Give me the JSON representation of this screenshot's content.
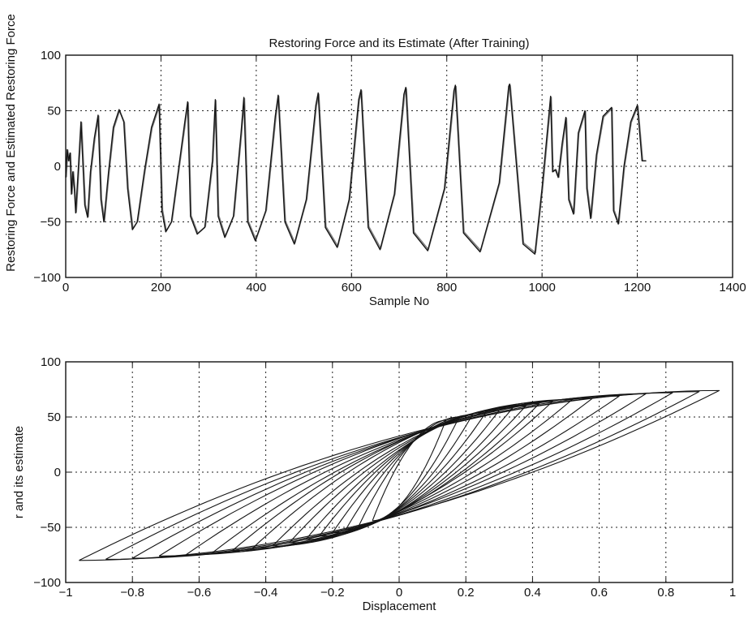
{
  "chart_data": [
    {
      "type": "line",
      "title": "Restoring Force and its Estimate  (After Training)",
      "xlabel": "Sample No",
      "ylabel": "Restoring Force and Estimated Restoring Force",
      "xlim": [
        0,
        1400
      ],
      "ylim": [
        -100,
        100
      ],
      "xticks": [
        0,
        200,
        400,
        600,
        800,
        1000,
        1200,
        1400
      ],
      "yticks": [
        -100,
        -50,
        0,
        50,
        100
      ],
      "grid": true,
      "cycles": [
        {
          "start": 12,
          "length": 28,
          "peak": 40,
          "trough": -46
        },
        {
          "start": 40,
          "length": 37,
          "peak": 46,
          "trough": -50
        },
        {
          "start": 77,
          "length": 63,
          "peak": 51,
          "trough": -57
        },
        {
          "start": 140,
          "length": 62,
          "peak": 56,
          "trough": -59
        },
        {
          "start": 202,
          "length": 58,
          "peak": 58,
          "trough": -61
        },
        {
          "start": 260,
          "length": 54,
          "peak": 60,
          "trough": -64
        },
        {
          "start": 314,
          "length": 60,
          "peak": 62,
          "trough": -67
        },
        {
          "start": 374,
          "length": 72,
          "peak": 64,
          "trough": -70
        },
        {
          "start": 446,
          "length": 84,
          "peak": 66,
          "trough": -73
        },
        {
          "start": 530,
          "length": 90,
          "peak": 69,
          "trough": -75
        },
        {
          "start": 620,
          "length": 94,
          "peak": 71,
          "trough": -76
        },
        {
          "start": 714,
          "length": 104,
          "peak": 73,
          "trough": -77
        },
        {
          "start": 818,
          "length": 114,
          "peak": 74,
          "trough": -79
        },
        {
          "start": 932,
          "length": 86,
          "peak": 63,
          "trough": -5
        },
        {
          "start": 1018,
          "length": 32,
          "peak": 44,
          "trough": -43
        },
        {
          "start": 1050,
          "length": 44,
          "peak": 50,
          "trough": -47
        },
        {
          "start": 1094,
          "length": 56,
          "peak": 53,
          "trough": -52
        },
        {
          "start": 1150,
          "length": 50,
          "peak": 55,
          "trough": -54
        }
      ],
      "series": [
        {
          "values_description_x_y": "x = sample number, y = restoring force",
          "x": [
            0,
            3,
            6,
            9,
            12,
            15,
            18,
            21,
            26,
            32,
            40,
            46,
            52,
            60,
            68,
            74,
            80,
            90,
            100,
            112,
            122,
            130,
            140,
            150,
            165,
            180,
            196,
            202,
            210,
            222,
            236,
            250,
            256,
            262,
            276,
            292,
            308,
            314,
            320,
            334,
            352,
            368,
            374,
            382,
            398,
            420,
            440,
            446,
            460,
            480,
            505,
            525,
            530,
            545,
            570,
            595,
            615,
            620,
            635,
            660,
            690,
            710,
            714,
            730,
            760,
            795,
            815,
            818,
            835,
            870,
            910,
            930,
            932,
            960,
            985,
            1000,
            1018,
            1022,
            1028,
            1034,
            1042,
            1050,
            1056,
            1066,
            1076,
            1090,
            1094,
            1102,
            1114,
            1128,
            1146,
            1150,
            1160,
            1172,
            1186,
            1200,
            1210,
            1218
          ],
          "y": [
            -10,
            15,
            5,
            12,
            -25,
            -5,
            -20,
            -42,
            -5,
            40,
            -35,
            -46,
            -5,
            25,
            46,
            -30,
            -50,
            -5,
            35,
            51,
            40,
            -20,
            -57,
            -50,
            -5,
            35,
            56,
            -40,
            -59,
            -50,
            -5,
            40,
            58,
            -45,
            -61,
            -55,
            5,
            60,
            -45,
            -64,
            -45,
            30,
            62,
            -50,
            -67,
            -40,
            45,
            64,
            -50,
            -70,
            -30,
            55,
            66,
            -55,
            -73,
            -30,
            60,
            69,
            -55,
            -75,
            -25,
            65,
            71,
            -60,
            -76,
            -20,
            68,
            73,
            -60,
            -77,
            -15,
            72,
            74,
            -70,
            -79,
            -20,
            63,
            -5,
            -3,
            -10,
            20,
            44,
            -30,
            -43,
            30,
            50,
            -20,
            -47,
            10,
            45,
            53,
            -40,
            -52,
            0,
            40,
            55,
            5,
            5
          ]
        }
      ]
    },
    {
      "type": "line",
      "title": "",
      "xlabel": "Displacement",
      "ylabel": "r and its estimate",
      "xlim": [
        -1,
        1
      ],
      "ylim": [
        -100,
        100
      ],
      "xticks": [
        -1,
        -0.8,
        -0.6,
        -0.4,
        -0.2,
        0,
        0.2,
        0.4,
        0.6,
        0.8,
        1
      ],
      "yticks": [
        -100,
        -50,
        0,
        50,
        100
      ],
      "grid": true,
      "loops": [
        {
          "xmin": -0.96,
          "xmax": 0.96,
          "fmin": -80,
          "fmax": 74
        },
        {
          "xmin": -0.88,
          "xmax": 0.9,
          "fmin": -79,
          "fmax": 73
        },
        {
          "xmin": -0.8,
          "xmax": 0.82,
          "fmin": -78,
          "fmax": 72
        },
        {
          "xmin": -0.72,
          "xmax": 0.74,
          "fmin": -76,
          "fmax": 71
        },
        {
          "xmin": -0.64,
          "xmax": 0.66,
          "fmin": -75,
          "fmax": 69
        },
        {
          "xmin": -0.56,
          "xmax": 0.58,
          "fmin": -73,
          "fmax": 67
        },
        {
          "xmin": -0.5,
          "xmax": 0.52,
          "fmin": -71,
          "fmax": 66
        },
        {
          "xmin": -0.44,
          "xmax": 0.46,
          "fmin": -69,
          "fmax": 64
        },
        {
          "xmin": -0.38,
          "xmax": 0.42,
          "fmin": -67,
          "fmax": 62
        },
        {
          "xmin": -0.33,
          "xmax": 0.38,
          "fmin": -64,
          "fmax": 60
        },
        {
          "xmin": -0.28,
          "xmax": 0.34,
          "fmin": -61,
          "fmax": 58
        },
        {
          "xmin": -0.24,
          "xmax": 0.3,
          "fmin": -58,
          "fmax": 56
        },
        {
          "xmin": -0.2,
          "xmax": 0.26,
          "fmin": -55,
          "fmax": 54
        },
        {
          "xmin": -0.16,
          "xmax": 0.22,
          "fmin": -52,
          "fmax": 52
        },
        {
          "xmin": -0.12,
          "xmax": 0.18,
          "fmin": -48,
          "fmax": 50
        },
        {
          "xmin": -0.08,
          "xmax": 0.14,
          "fmin": -44,
          "fmax": 47
        }
      ]
    }
  ]
}
